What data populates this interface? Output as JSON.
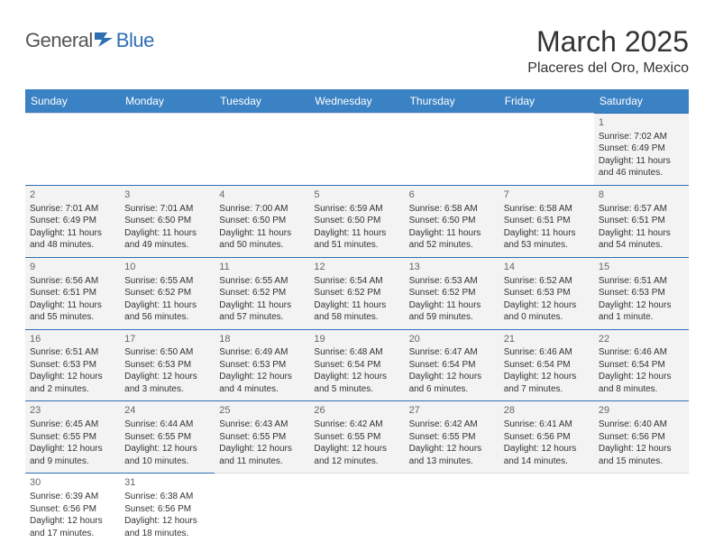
{
  "logo": {
    "general": "General",
    "blue": "Blue"
  },
  "header": {
    "title": "March 2025",
    "location": "Placeres del Oro, Mexico"
  },
  "colors": {
    "header_bg": "#3b82c4",
    "header_text": "#ffffff",
    "cell_bg": "#f3f3f3",
    "cell_border": "#2d6fb5",
    "page_bg": "#ffffff",
    "text": "#333333"
  },
  "calendar": {
    "type": "table",
    "days": [
      "Sunday",
      "Monday",
      "Tuesday",
      "Wednesday",
      "Thursday",
      "Friday",
      "Saturday"
    ],
    "weeks": [
      [
        null,
        null,
        null,
        null,
        null,
        null,
        {
          "n": "1",
          "sr": "Sunrise: 7:02 AM",
          "ss": "Sunset: 6:49 PM",
          "dl": "Daylight: 11 hours and 46 minutes."
        }
      ],
      [
        {
          "n": "2",
          "sr": "Sunrise: 7:01 AM",
          "ss": "Sunset: 6:49 PM",
          "dl": "Daylight: 11 hours and 48 minutes."
        },
        {
          "n": "3",
          "sr": "Sunrise: 7:01 AM",
          "ss": "Sunset: 6:50 PM",
          "dl": "Daylight: 11 hours and 49 minutes."
        },
        {
          "n": "4",
          "sr": "Sunrise: 7:00 AM",
          "ss": "Sunset: 6:50 PM",
          "dl": "Daylight: 11 hours and 50 minutes."
        },
        {
          "n": "5",
          "sr": "Sunrise: 6:59 AM",
          "ss": "Sunset: 6:50 PM",
          "dl": "Daylight: 11 hours and 51 minutes."
        },
        {
          "n": "6",
          "sr": "Sunrise: 6:58 AM",
          "ss": "Sunset: 6:50 PM",
          "dl": "Daylight: 11 hours and 52 minutes."
        },
        {
          "n": "7",
          "sr": "Sunrise: 6:58 AM",
          "ss": "Sunset: 6:51 PM",
          "dl": "Daylight: 11 hours and 53 minutes."
        },
        {
          "n": "8",
          "sr": "Sunrise: 6:57 AM",
          "ss": "Sunset: 6:51 PM",
          "dl": "Daylight: 11 hours and 54 minutes."
        }
      ],
      [
        {
          "n": "9",
          "sr": "Sunrise: 6:56 AM",
          "ss": "Sunset: 6:51 PM",
          "dl": "Daylight: 11 hours and 55 minutes."
        },
        {
          "n": "10",
          "sr": "Sunrise: 6:55 AM",
          "ss": "Sunset: 6:52 PM",
          "dl": "Daylight: 11 hours and 56 minutes."
        },
        {
          "n": "11",
          "sr": "Sunrise: 6:55 AM",
          "ss": "Sunset: 6:52 PM",
          "dl": "Daylight: 11 hours and 57 minutes."
        },
        {
          "n": "12",
          "sr": "Sunrise: 6:54 AM",
          "ss": "Sunset: 6:52 PM",
          "dl": "Daylight: 11 hours and 58 minutes."
        },
        {
          "n": "13",
          "sr": "Sunrise: 6:53 AM",
          "ss": "Sunset: 6:52 PM",
          "dl": "Daylight: 11 hours and 59 minutes."
        },
        {
          "n": "14",
          "sr": "Sunrise: 6:52 AM",
          "ss": "Sunset: 6:53 PM",
          "dl": "Daylight: 12 hours and 0 minutes."
        },
        {
          "n": "15",
          "sr": "Sunrise: 6:51 AM",
          "ss": "Sunset: 6:53 PM",
          "dl": "Daylight: 12 hours and 1 minute."
        }
      ],
      [
        {
          "n": "16",
          "sr": "Sunrise: 6:51 AM",
          "ss": "Sunset: 6:53 PM",
          "dl": "Daylight: 12 hours and 2 minutes."
        },
        {
          "n": "17",
          "sr": "Sunrise: 6:50 AM",
          "ss": "Sunset: 6:53 PM",
          "dl": "Daylight: 12 hours and 3 minutes."
        },
        {
          "n": "18",
          "sr": "Sunrise: 6:49 AM",
          "ss": "Sunset: 6:53 PM",
          "dl": "Daylight: 12 hours and 4 minutes."
        },
        {
          "n": "19",
          "sr": "Sunrise: 6:48 AM",
          "ss": "Sunset: 6:54 PM",
          "dl": "Daylight: 12 hours and 5 minutes."
        },
        {
          "n": "20",
          "sr": "Sunrise: 6:47 AM",
          "ss": "Sunset: 6:54 PM",
          "dl": "Daylight: 12 hours and 6 minutes."
        },
        {
          "n": "21",
          "sr": "Sunrise: 6:46 AM",
          "ss": "Sunset: 6:54 PM",
          "dl": "Daylight: 12 hours and 7 minutes."
        },
        {
          "n": "22",
          "sr": "Sunrise: 6:46 AM",
          "ss": "Sunset: 6:54 PM",
          "dl": "Daylight: 12 hours and 8 minutes."
        }
      ],
      [
        {
          "n": "23",
          "sr": "Sunrise: 6:45 AM",
          "ss": "Sunset: 6:55 PM",
          "dl": "Daylight: 12 hours and 9 minutes."
        },
        {
          "n": "24",
          "sr": "Sunrise: 6:44 AM",
          "ss": "Sunset: 6:55 PM",
          "dl": "Daylight: 12 hours and 10 minutes."
        },
        {
          "n": "25",
          "sr": "Sunrise: 6:43 AM",
          "ss": "Sunset: 6:55 PM",
          "dl": "Daylight: 12 hours and 11 minutes."
        },
        {
          "n": "26",
          "sr": "Sunrise: 6:42 AM",
          "ss": "Sunset: 6:55 PM",
          "dl": "Daylight: 12 hours and 12 minutes."
        },
        {
          "n": "27",
          "sr": "Sunrise: 6:42 AM",
          "ss": "Sunset: 6:55 PM",
          "dl": "Daylight: 12 hours and 13 minutes."
        },
        {
          "n": "28",
          "sr": "Sunrise: 6:41 AM",
          "ss": "Sunset: 6:56 PM",
          "dl": "Daylight: 12 hours and 14 minutes."
        },
        {
          "n": "29",
          "sr": "Sunrise: 6:40 AM",
          "ss": "Sunset: 6:56 PM",
          "dl": "Daylight: 12 hours and 15 minutes."
        }
      ],
      [
        {
          "n": "30",
          "sr": "Sunrise: 6:39 AM",
          "ss": "Sunset: 6:56 PM",
          "dl": "Daylight: 12 hours and 17 minutes.",
          "white": true
        },
        {
          "n": "31",
          "sr": "Sunrise: 6:38 AM",
          "ss": "Sunset: 6:56 PM",
          "dl": "Daylight: 12 hours and 18 minutes.",
          "white": true
        },
        null,
        null,
        null,
        null,
        null
      ]
    ]
  }
}
